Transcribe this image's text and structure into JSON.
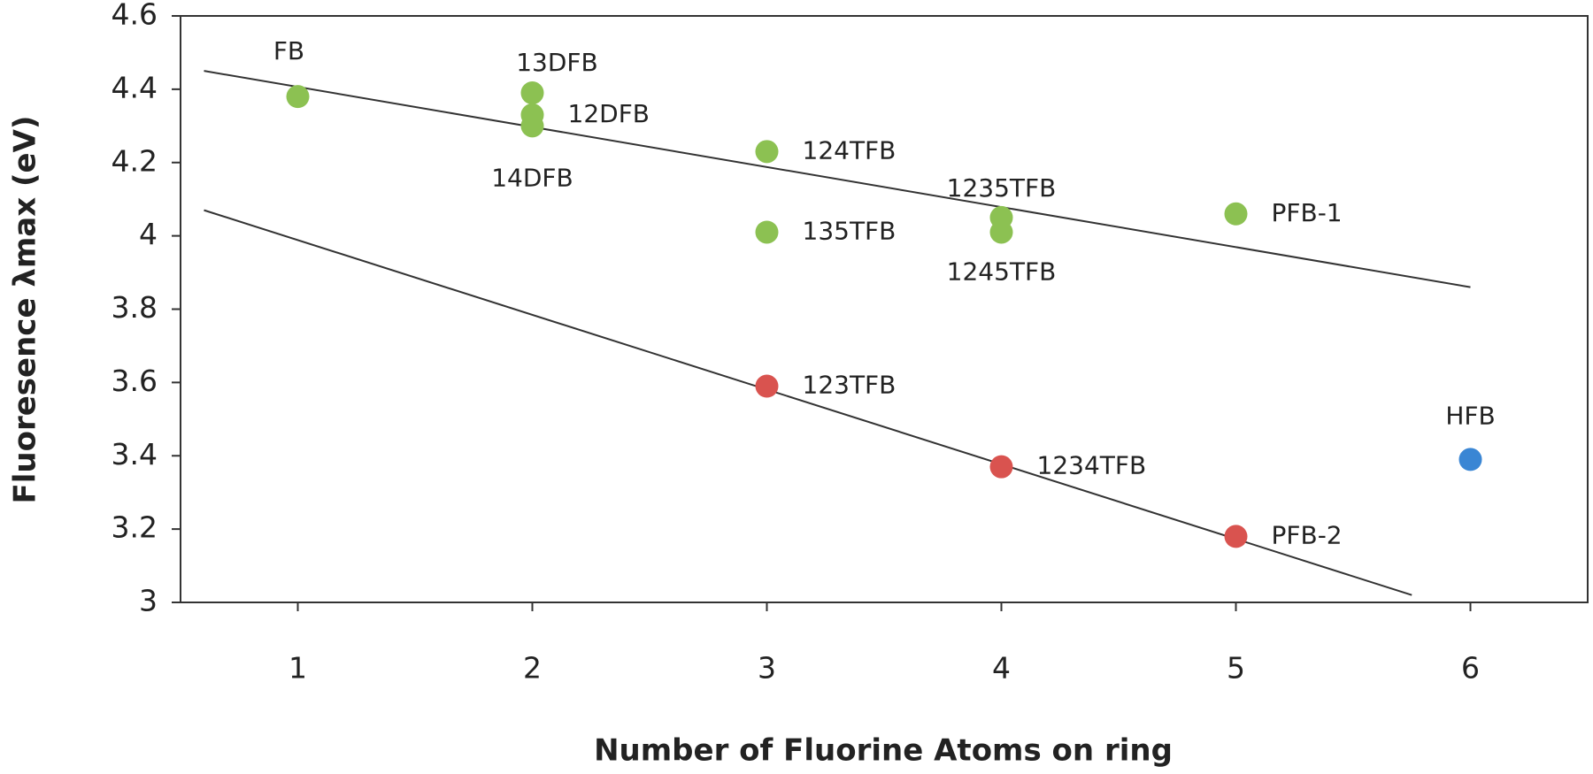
{
  "chart_data": {
    "type": "scatter",
    "x_label": "Number of Fluorine Atoms on ring",
    "y_label": "Fluoresence λmax (eV)",
    "xlim": [
      0.5,
      6.5
    ],
    "xticks": [
      1,
      2,
      3,
      4,
      5,
      6
    ],
    "ylim": [
      3,
      4.6
    ],
    "yticks": [
      3,
      3.2,
      3.4,
      3.6,
      3.8,
      4,
      4.2,
      4.4,
      4.6
    ],
    "grid": false,
    "series": [
      {
        "color": "#8cc152",
        "x": [
          1,
          2,
          2,
          2,
          3,
          3,
          4,
          4,
          5
        ],
        "values": [
          4.38,
          4.39,
          4.33,
          4.3,
          4.23,
          4.01,
          4.05,
          4.01,
          4.06
        ],
        "labels": [
          "FB",
          "13DFB",
          "12DFB",
          "14DFB",
          "124TFB",
          "135TFB",
          "1235TFB",
          "1245TFB",
          "PFB-1"
        ]
      },
      {
        "color": "#d9534f",
        "x": [
          3,
          4,
          5
        ],
        "values": [
          3.59,
          3.37,
          3.18
        ],
        "labels": [
          "123TFB",
          "1234TFB",
          "PFB-2"
        ]
      },
      {
        "color": "#3a86d4",
        "x": [
          6
        ],
        "values": [
          3.39
        ],
        "labels": [
          "HFB"
        ]
      }
    ],
    "trendlines": [
      {
        "x": [
          0.6,
          6
        ],
        "values": [
          4.45,
          3.86
        ]
      },
      {
        "x": [
          0.6,
          5.75
        ],
        "values": [
          4.07,
          3.02
        ]
      }
    ]
  }
}
